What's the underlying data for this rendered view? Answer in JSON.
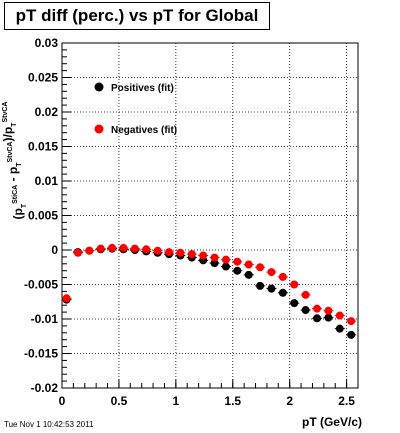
{
  "footer_stamp": "Tue Nov  1 10:42:53 2011",
  "colors": {
    "positives": "#000000",
    "negatives": "#ff0000",
    "grid": "#000000"
  },
  "chart_data": {
    "type": "scatter",
    "title": "pT diff (perc.) vs pT for Global",
    "xlabel": "pT (GeV/c)",
    "ylabel": "(pT^StiCA - pT^StvCA)/pT^StvCA",
    "xlim": [
      0,
      2.6
    ],
    "ylim": [
      -0.02,
      0.03
    ],
    "x_ticks": [
      "0",
      "0.5",
      "1",
      "1.5",
      "2",
      "2.5"
    ],
    "y_ticks": [
      "-0.02",
      "-0.015",
      "-0.01",
      "-0.005",
      "0",
      "0.005",
      "0.01",
      "0.015",
      "0.02",
      "0.025",
      "0.03"
    ],
    "grid": true,
    "legend_position": "top-left",
    "series": [
      {
        "name": "Positives (fit)",
        "color": "#000000",
        "x": [
          0.04,
          0.14,
          0.24,
          0.34,
          0.44,
          0.54,
          0.64,
          0.74,
          0.84,
          0.94,
          1.04,
          1.14,
          1.24,
          1.34,
          1.44,
          1.54,
          1.64,
          1.74,
          1.84,
          1.94,
          2.04,
          2.14,
          2.24,
          2.34,
          2.44,
          2.54
        ],
        "values": [
          -0.0072,
          -0.0003,
          -0.0001,
          0.0001,
          0.0002,
          0.0001,
          0.0,
          -0.0002,
          -0.0004,
          -0.0006,
          -0.0008,
          -0.0011,
          -0.0015,
          -0.0019,
          -0.0024,
          -0.003,
          -0.0036,
          -0.0052,
          -0.0056,
          -0.0062,
          -0.0077,
          -0.0087,
          -0.0099,
          -0.0098,
          -0.0114,
          -0.0123
        ]
      },
      {
        "name": "Negatives (fit)",
        "color": "#ff0000",
        "x": [
          0.04,
          0.14,
          0.24,
          0.34,
          0.44,
          0.54,
          0.64,
          0.74,
          0.84,
          0.94,
          1.04,
          1.14,
          1.24,
          1.34,
          1.44,
          1.54,
          1.64,
          1.74,
          1.84,
          1.94,
          2.04,
          2.14,
          2.24,
          2.34,
          2.44,
          2.54
        ],
        "values": [
          -0.007,
          -0.0004,
          -0.0001,
          0.0002,
          0.0003,
          0.0003,
          0.0002,
          0.0001,
          -0.0001,
          -0.0003,
          -0.0004,
          -0.0006,
          -0.0008,
          -0.0011,
          -0.0014,
          -0.0017,
          -0.0021,
          -0.0025,
          -0.0032,
          -0.0039,
          -0.005,
          -0.0065,
          -0.0085,
          -0.0088,
          -0.0095,
          -0.0103
        ]
      }
    ]
  }
}
